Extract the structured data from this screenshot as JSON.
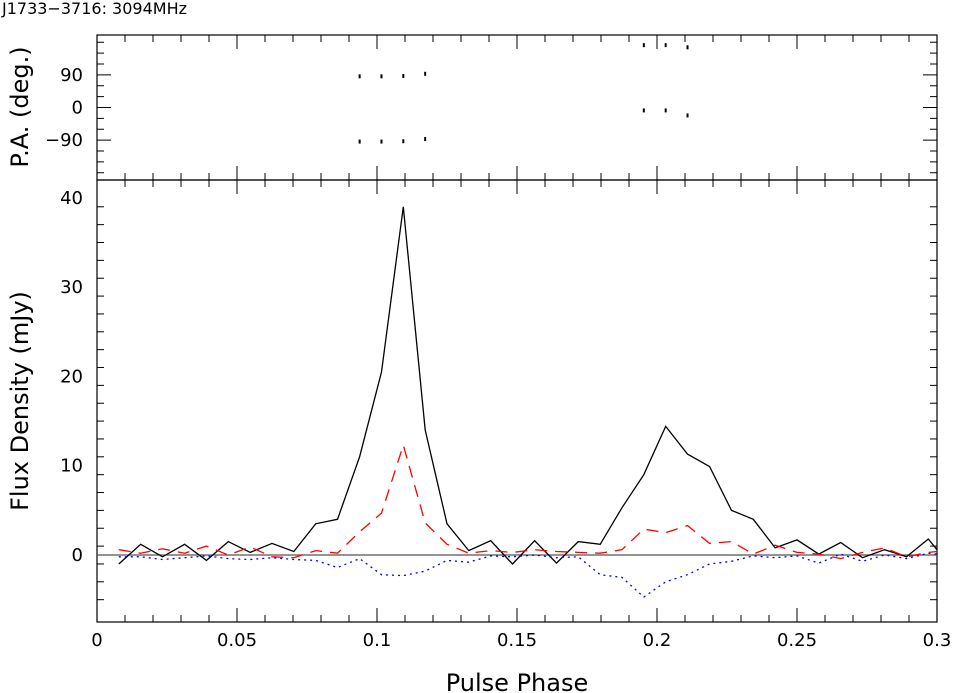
{
  "chart_data": [
    {
      "panel": "position-angle",
      "type": "scatter",
      "title": "J1733−3716: 3094MHz",
      "ylabel": "P.A. (deg.)",
      "xlim": [
        0,
        0.3
      ],
      "ylim": [
        -200,
        200
      ],
      "yticks": [
        -90,
        0,
        90
      ],
      "ytick_labels": [
        "−90",
        "0",
        "90"
      ],
      "series": [
        {
          "x": [
            0.0938,
            0.1016,
            0.1094,
            0.1172,
            0.0938,
            0.1016,
            0.1094,
            0.1172,
            0.1953,
            0.2031,
            0.2109,
            0.1953,
            0.2031,
            0.2109
          ],
          "y": [
            86,
            86,
            87,
            93,
            -94,
            -94,
            -93,
            -87,
            172,
            172,
            166,
            -8,
            -8,
            -22
          ]
        }
      ]
    },
    {
      "panel": "profile",
      "type": "line",
      "xlabel": "Pulse Phase",
      "ylabel": "Flux Density (mJy)",
      "xlim": [
        0,
        0.3
      ],
      "ylim": [
        -7.5,
        42
      ],
      "xticks": [
        0,
        0.05,
        0.1,
        0.15,
        0.2,
        0.25,
        0.3
      ],
      "xtick_labels": [
        "0",
        "0.05",
        "0.1",
        "0.15",
        "0.2",
        "0.25",
        "0.3"
      ],
      "yticks": [
        0,
        10,
        20,
        30,
        40
      ],
      "ytick_labels": [
        "0",
        "10",
        "20",
        "30",
        "40"
      ],
      "baseline": 0,
      "x": [
        0.0078,
        0.0156,
        0.0234,
        0.0313,
        0.0391,
        0.0469,
        0.0547,
        0.0625,
        0.0703,
        0.0781,
        0.0859,
        0.0938,
        0.1016,
        0.1094,
        0.1172,
        0.125,
        0.1328,
        0.1406,
        0.1484,
        0.1563,
        0.1641,
        0.1719,
        0.1797,
        0.1875,
        0.1953,
        0.2031,
        0.2109,
        0.2188,
        0.2266,
        0.2344,
        0.2422,
        0.25,
        0.2578,
        0.2656,
        0.2734,
        0.2813,
        0.2891,
        0.2969,
        0.3
      ],
      "series": [
        {
          "style": "solid",
          "color": "#000000",
          "values": [
            -1.0,
            1.2,
            -0.2,
            1.2,
            -0.6,
            1.5,
            0.3,
            1.3,
            0.4,
            3.5,
            4.0,
            11.0,
            20.5,
            39.0,
            14.0,
            3.5,
            0.5,
            1.6,
            -1.0,
            1.6,
            -0.9,
            1.5,
            1.2,
            5.3,
            9.0,
            14.4,
            11.3,
            9.9,
            5.0,
            4.0,
            0.8,
            1.7,
            0.1,
            1.4,
            -0.3,
            0.6,
            -0.2,
            1.8,
            0.6
          ]
        },
        {
          "style": "dashed",
          "color": "#ff0000",
          "values": [
            0.6,
            0.2,
            0.7,
            0.2,
            1.0,
            0.0,
            0.9,
            -0.2,
            -0.3,
            0.5,
            0.2,
            2.6,
            4.7,
            12.3,
            3.6,
            1.2,
            0.2,
            0.5,
            0.3,
            0.6,
            0.4,
            0.3,
            0.2,
            0.6,
            2.9,
            2.5,
            3.3,
            1.3,
            1.5,
            0.1,
            1.1,
            0.3,
            0.1,
            -0.4,
            0.3,
            0.8,
            -0.2,
            0.3,
            0.4
          ]
        },
        {
          "style": "dotted",
          "color": "#0000ff",
          "values": [
            -0.2,
            -0.2,
            -0.5,
            -0.3,
            -0.1,
            -0.4,
            -0.5,
            -0.3,
            -0.5,
            -0.6,
            -1.4,
            -0.4,
            -2.2,
            -2.3,
            -1.8,
            -0.6,
            -0.8,
            -0.1,
            -0.2,
            0.0,
            -0.3,
            -0.2,
            -2.2,
            -2.5,
            -4.7,
            -3.0,
            -2.2,
            -1.0,
            -0.7,
            -0.1,
            -0.3,
            -0.1,
            -0.9,
            0.1,
            -0.7,
            0.0,
            -0.4,
            0.2,
            0.1
          ]
        }
      ]
    }
  ]
}
